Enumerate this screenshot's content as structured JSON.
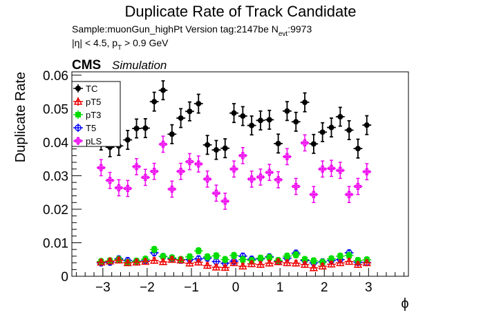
{
  "header": {
    "title": "Duplicate Rate of Track Candidate",
    "sample_line": "Sample:muonGun_highPt   Version tag:2147be  N",
    "nevt_sub": "evt",
    "nevt_value": ":9973",
    "cut_eta": "|η| < 4.5, p",
    "cut_sub": "T",
    "cut_rest": " > 0.9 GeV"
  },
  "cms_label": {
    "cms": "CMS",
    "simulation": "Simulation"
  },
  "chart_data": {
    "type": "scatter",
    "title": "Duplicate Rate of Track Candidate",
    "xlabel": "ϕ",
    "ylabel": "Duplicate Rate",
    "xlim": [
      -3.7,
      3.9
    ],
    "ylim": [
      0,
      0.061
    ],
    "x_ticks": [
      -3,
      -2,
      -1,
      0,
      1,
      2,
      3
    ],
    "x_tick_labels": [
      "−3",
      "−2",
      "−1",
      "0",
      "1",
      "2",
      "3"
    ],
    "y_ticks": [
      0,
      0.01,
      0.02,
      0.03,
      0.04,
      0.05,
      0.06
    ],
    "y_tick_labels": [
      "0",
      "0.01",
      "0.02",
      "0.03",
      "0.04",
      "0.05",
      "0.06"
    ],
    "x": [
      -3.04,
      -2.84,
      -2.64,
      -2.44,
      -2.24,
      -2.04,
      -1.84,
      -1.64,
      -1.44,
      -1.24,
      -1.04,
      -0.84,
      -0.64,
      -0.44,
      -0.24,
      -0.04,
      0.16,
      0.36,
      0.56,
      0.76,
      0.96,
      1.16,
      1.36,
      1.56,
      1.76,
      1.96,
      2.16,
      2.36,
      2.56,
      2.76,
      2.96
    ],
    "x_err": 0.1,
    "legend": {
      "placement": "top-left",
      "entries": [
        "TC",
        "pT5",
        "pT3",
        "T5",
        "pLS"
      ]
    },
    "series": [
      {
        "name": "TC",
        "color": "#000000",
        "marker": "filled-circle",
        "values": [
          0.0405,
          0.0385,
          0.0389,
          0.0407,
          0.0441,
          0.0442,
          0.0521,
          0.0555,
          0.0424,
          0.0472,
          0.0492,
          0.0515,
          0.0392,
          0.0377,
          0.0382,
          0.0487,
          0.0478,
          0.045,
          0.0465,
          0.0467,
          0.0396,
          0.0493,
          0.0461,
          0.0519,
          0.0395,
          0.043,
          0.0444,
          0.0476,
          0.0436,
          0.0381,
          0.0451
        ],
        "err": 0.0028
      },
      {
        "name": "pT5",
        "color": "#ee0000",
        "marker": "open-triangle",
        "values": [
          0.0042,
          0.0045,
          0.0048,
          0.004,
          0.0042,
          0.0044,
          0.0047,
          0.0043,
          0.005,
          0.0048,
          0.0039,
          0.0042,
          0.0032,
          0.0027,
          0.0026,
          0.004,
          0.003,
          0.0037,
          0.0035,
          0.0039,
          0.0043,
          0.004,
          0.0039,
          0.0035,
          0.0025,
          0.003,
          0.0036,
          0.004,
          0.0044,
          0.0035,
          0.004
        ],
        "err": 0.0008
      },
      {
        "name": "pT3",
        "color": "#00dd00",
        "marker": "filled-square",
        "values": [
          0.0044,
          0.0046,
          0.005,
          0.0041,
          0.0045,
          0.0051,
          0.008,
          0.0059,
          0.0055,
          0.005,
          0.0058,
          0.0076,
          0.0058,
          0.0061,
          0.005,
          0.0062,
          0.005,
          0.0047,
          0.0054,
          0.0056,
          0.0047,
          0.006,
          0.0064,
          0.005,
          0.0046,
          0.0042,
          0.0052,
          0.006,
          0.0062,
          0.0047,
          0.0049
        ],
        "err": 0.0009
      },
      {
        "name": "T5",
        "color": "#0000ff",
        "marker": "open-circle",
        "values": [
          0.004,
          0.0042,
          0.0052,
          0.0047,
          0.0045,
          0.0046,
          0.007,
          0.0059,
          0.0052,
          0.0048,
          0.005,
          0.0052,
          0.0054,
          0.0044,
          0.0039,
          0.0045,
          0.006,
          0.0051,
          0.0052,
          0.0058,
          0.0044,
          0.0054,
          0.0069,
          0.0047,
          0.004,
          0.0043,
          0.0047,
          0.005,
          0.007,
          0.0042,
          0.0041
        ],
        "err": 0.0009
      },
      {
        "name": "pLS",
        "color": "#ee00ee",
        "marker": "open-cross",
        "values": [
          0.0324,
          0.0286,
          0.0264,
          0.0262,
          0.0327,
          0.0295,
          0.0313,
          0.0394,
          0.026,
          0.0313,
          0.0342,
          0.0335,
          0.029,
          0.0248,
          0.0224,
          0.032,
          0.036,
          0.029,
          0.0296,
          0.031,
          0.0288,
          0.0357,
          0.0268,
          0.0398,
          0.0244,
          0.032,
          0.0322,
          0.0316,
          0.0244,
          0.0268,
          0.0312
        ],
        "err": 0.0024
      }
    ]
  }
}
